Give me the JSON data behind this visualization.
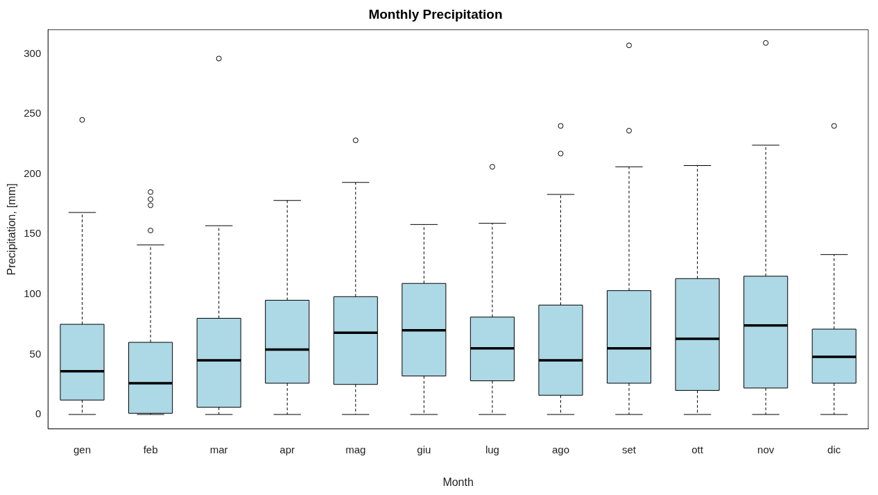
{
  "chart_data": {
    "type": "box",
    "title": "Monthly Precipitation",
    "xlabel": "Month",
    "ylabel": "Precipitation, [mm]",
    "color": "#add8e6",
    "categories": [
      "gen",
      "feb",
      "mar",
      "apr",
      "mag",
      "giu",
      "lug",
      "ago",
      "set",
      "ott",
      "nov",
      "dic"
    ],
    "boxes": [
      {
        "low": 0,
        "q1": 12,
        "median": 36,
        "q3": 75,
        "high": 168,
        "outliers": [
          245
        ]
      },
      {
        "low": 0,
        "q1": 1,
        "median": 26,
        "q3": 60,
        "high": 141,
        "outliers": [
          153,
          174,
          179,
          185
        ]
      },
      {
        "low": 0,
        "q1": 6,
        "median": 45,
        "q3": 80,
        "high": 157,
        "outliers": [
          296
        ]
      },
      {
        "low": 0,
        "q1": 26,
        "median": 54,
        "q3": 95,
        "high": 178
      },
      {
        "low": 0,
        "q1": 25,
        "median": 68,
        "q3": 98,
        "high": 193,
        "outliers": [
          228
        ]
      },
      {
        "low": 0,
        "q1": 32,
        "median": 70,
        "q3": 109,
        "high": 158
      },
      {
        "low": 0,
        "q1": 28,
        "median": 55,
        "q3": 81,
        "high": 159,
        "outliers": [
          206
        ]
      },
      {
        "low": 0,
        "q1": 16,
        "median": 45,
        "q3": 91,
        "high": 183,
        "outliers": [
          217,
          240
        ]
      },
      {
        "low": 0,
        "q1": 26,
        "median": 55,
        "q3": 103,
        "high": 206,
        "outliers": [
          236,
          307
        ]
      },
      {
        "low": 0,
        "q1": 20,
        "median": 63,
        "q3": 113,
        "high": 207
      },
      {
        "low": 0,
        "q1": 22,
        "median": 74,
        "q3": 115,
        "high": 224,
        "outliers": [
          309
        ]
      },
      {
        "low": 0,
        "q1": 26,
        "median": 48,
        "q3": 71,
        "high": 133,
        "outliers": [
          240
        ]
      }
    ],
    "ylim": [
      -12,
      320
    ],
    "yticks": [
      0,
      50,
      100,
      150,
      200,
      250,
      300
    ]
  }
}
